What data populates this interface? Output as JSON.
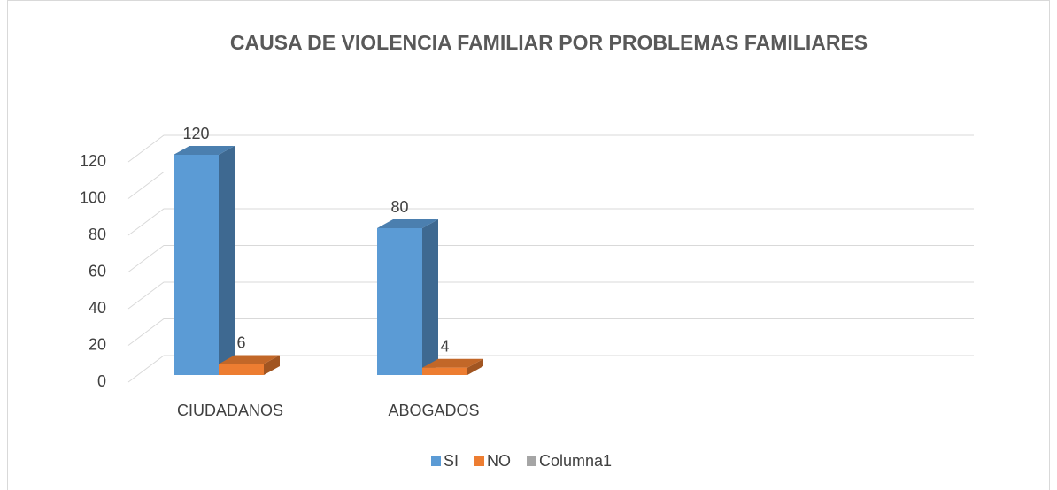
{
  "chart_data": {
    "type": "bar3d",
    "title": "CAUSA DE VIOLENCIA FAMILIAR POR PROBLEMAS FAMILIARES",
    "categories": [
      "CIUDADANOS",
      "ABOGADOS",
      null,
      null
    ],
    "series": [
      {
        "name": "SI",
        "color": "#5b9bd5",
        "values": [
          120,
          80,
          null,
          null
        ]
      },
      {
        "name": "NO",
        "color": "#ed7d31",
        "values": [
          6,
          4,
          null,
          null
        ]
      },
      {
        "name": "Columna1",
        "color": "#a5a5a5",
        "values": [
          null,
          null,
          null,
          null
        ]
      }
    ],
    "ylim": [
      0,
      120
    ],
    "yticks": [
      0,
      20,
      40,
      60,
      80,
      100,
      120
    ],
    "grid": true,
    "legend": "bottom"
  }
}
